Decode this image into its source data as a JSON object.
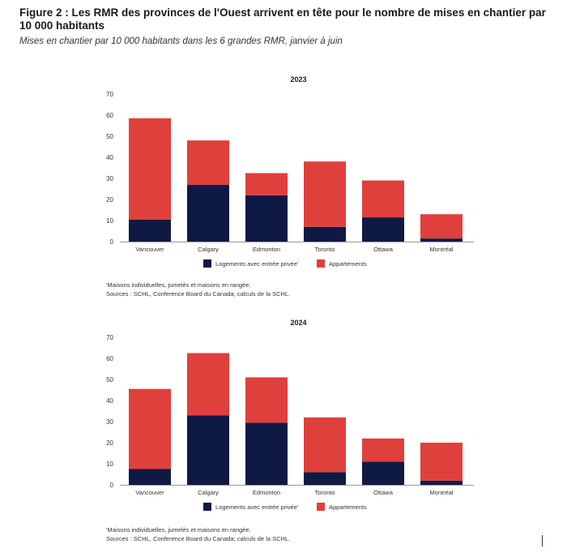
{
  "figure": {
    "title": "Figure 2 : Les RMR des provinces de l'Ouest arrivent en tête pour le nombre de mises en chantier par 10 000 habitants",
    "subtitle": "Mises en chantier par 10 000 habitants dans les 6 grandes RMR, janvier à juin"
  },
  "notes": {
    "footnote": "'Maisons individuelles, jumelés et maisons en rangée.",
    "sources": "Sources : SCHL, Conference Board du Canada; calculs de la SCHL."
  },
  "colors": {
    "private": "#0f1a44",
    "apartments": "#e0403c",
    "axis": "#999999"
  },
  "chart_data": [
    {
      "type": "bar",
      "stacked": true,
      "title": "2023",
      "categories": [
        "Vancouver",
        "Calgary",
        "Edmonton",
        "Toronto",
        "Ottawa",
        "Montréal"
      ],
      "series": [
        {
          "name": "Logements avec entrée privée'",
          "values": [
            10.5,
            27,
            22,
            7,
            11.5,
            1.5
          ]
        },
        {
          "name": "Appartements",
          "values": [
            48,
            21,
            10.5,
            31,
            17.5,
            11.5
          ]
        }
      ],
      "xlabel": "",
      "ylabel": "",
      "ylim": [
        0,
        70
      ],
      "yticks": [
        0,
        10,
        20,
        30,
        40,
        50,
        60,
        70
      ],
      "grid": false,
      "legend": "bottom"
    },
    {
      "type": "bar",
      "stacked": true,
      "title": "2024",
      "categories": [
        "Vancouver",
        "Calgary",
        "Edmonton",
        "Toronto",
        "Ottawa",
        "Montréal"
      ],
      "series": [
        {
          "name": "Logements avec entrée privée'",
          "values": [
            7.5,
            33,
            29.5,
            6,
            11,
            2
          ]
        },
        {
          "name": "Appartements",
          "values": [
            38,
            29.5,
            21.5,
            26,
            11,
            18
          ]
        }
      ],
      "xlabel": "",
      "ylabel": "",
      "ylim": [
        0,
        70
      ],
      "yticks": [
        0,
        10,
        20,
        30,
        40,
        50,
        60,
        70
      ],
      "grid": false,
      "legend": "bottom"
    }
  ]
}
